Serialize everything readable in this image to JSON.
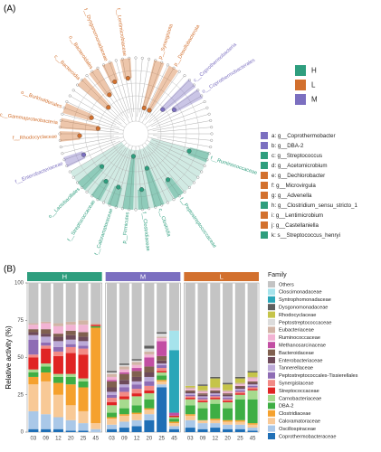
{
  "panel_a": {
    "label": "(A)",
    "groups": [
      {
        "name": "H",
        "color": "#2e9e7e"
      },
      {
        "name": "L",
        "color": "#d2702e"
      },
      {
        "name": "M",
        "color": "#7b6fc0"
      }
    ],
    "taxa": [
      {
        "label": "a: g__Coprothermobacter",
        "group": 2
      },
      {
        "label": "b: g__DBA-2",
        "group": 2
      },
      {
        "label": "c: g__Streptococcus",
        "group": 0
      },
      {
        "label": "d: g__Acetomicrobium",
        "group": 0
      },
      {
        "label": "e: g__Dechlorobacter",
        "group": 1
      },
      {
        "label": "f: g__Microvirgula",
        "group": 1
      },
      {
        "label": "g: g__Advenella",
        "group": 1
      },
      {
        "label": "h: g__Clostridium_sensu_stricto_1",
        "group": 0
      },
      {
        "label": "i: g__Lentimicrobium",
        "group": 1
      },
      {
        "label": "j: g__Castellaniella",
        "group": 1
      },
      {
        "label": "k: s__Streptococcus_henryi",
        "group": 0
      }
    ],
    "clade_labels": [
      {
        "label": "p__Synergistota",
        "group": 1
      },
      {
        "label": "p__Desulfobacterota",
        "group": 1
      },
      {
        "label": "c__Coprothermobacteria",
        "group": 2
      },
      {
        "label": "o__Coprothermobacterales",
        "group": 2
      },
      {
        "label": "f__Lentimicrobiaceae",
        "group": 1
      },
      {
        "label": "f__Dysgonomonadaceae",
        "group": 1
      },
      {
        "label": "o__Bacteroidales",
        "group": 1
      },
      {
        "label": "c__Bacteroidia",
        "group": 1
      },
      {
        "label": "o__Burkholderiales",
        "group": 1
      },
      {
        "label": "c__Gammaproteobacteria",
        "group": 1
      },
      {
        "label": "f__Rhodocyclaceae",
        "group": 1
      },
      {
        "label": "f__Enterobacteriaceae",
        "group": 2
      },
      {
        "label": "f__Ruminococcaceae",
        "group": 0
      },
      {
        "label": "f__Peptostreptococcaceae",
        "group": 0
      },
      {
        "label": "c__Clostridia",
        "group": 0
      },
      {
        "label": "f__Clostridiaceae",
        "group": 0
      },
      {
        "label": "p__Firmicutes",
        "group": 0
      },
      {
        "label": "f__Caloramatoraceae",
        "group": 0
      },
      {
        "label": "f__Streptococcaceae",
        "group": 0
      },
      {
        "label": "o__Lactobacillales",
        "group": 0
      }
    ]
  },
  "chart_data": {
    "type": "stacked_bar",
    "panel_label": "(B)",
    "ylabel": "Relative activity (%)",
    "legend_title": "Family",
    "ylim": [
      0,
      100
    ],
    "yticks": [
      0,
      25,
      50,
      75,
      100
    ],
    "facets": [
      {
        "label": "H",
        "color": "#2e9e7e"
      },
      {
        "label": "M",
        "color": "#7b6fc0"
      },
      {
        "label": "L",
        "color": "#d2702e"
      }
    ],
    "categories": [
      "03",
      "09",
      "12",
      "20",
      "25",
      "45",
      "03",
      "09",
      "12",
      "20",
      "25",
      "45",
      "03",
      "09",
      "12",
      "20",
      "25",
      "45"
    ],
    "series": [
      {
        "name": "Others",
        "color": "#c4c4c4",
        "values": [
          27,
          26,
          27,
          26,
          25,
          27,
          59,
          54,
          51,
          42,
          33,
          32,
          69,
          68,
          63,
          67,
          63,
          59
        ]
      },
      {
        "name": "Closcimonadaceae",
        "color": "#a6e3ec",
        "values": [
          0,
          0,
          0,
          0,
          0,
          0,
          0,
          0,
          0,
          0,
          0,
          13,
          0,
          0,
          0,
          0,
          0,
          0
        ]
      },
      {
        "name": "Syntrophomonadaceae",
        "color": "#2aa6b8",
        "values": [
          0,
          0,
          0,
          0,
          0,
          0,
          0,
          0,
          0,
          0,
          0,
          42,
          0,
          0,
          0,
          0,
          0,
          0
        ]
      },
      {
        "name": "Dysgonomonadaceae",
        "color": "#5e5e5e",
        "values": [
          0,
          0,
          0,
          0,
          0,
          0,
          1,
          1,
          1,
          2,
          1,
          0,
          0,
          1,
          1,
          1,
          1,
          1
        ]
      },
      {
        "name": "Rhodocyclaceae",
        "color": "#c5c44a",
        "values": [
          0,
          0,
          0,
          0,
          0,
          0,
          0,
          0,
          0,
          0,
          0,
          0,
          1,
          3,
          6,
          4,
          3,
          3
        ]
      },
      {
        "name": "Peptostreptococcaceae",
        "color": "#dcdcdc",
        "values": [
          0,
          0,
          0,
          0,
          0,
          0,
          1,
          1,
          1,
          2,
          2,
          0,
          0,
          0,
          0,
          0,
          0,
          0
        ]
      },
      {
        "name": "Eubacteriaceae",
        "color": "#d2b4a6",
        "values": [
          1,
          1,
          2,
          2,
          3,
          1,
          2,
          2,
          2,
          2,
          1,
          0,
          1,
          1,
          1,
          1,
          1,
          1
        ]
      },
      {
        "name": "Ruminococcaceae",
        "color": "#f2b3d4",
        "values": [
          3,
          4,
          5,
          4,
          5,
          0,
          2,
          2,
          2,
          2,
          2,
          0,
          1,
          1,
          1,
          1,
          1,
          2
        ]
      },
      {
        "name": "Methanosarcinaceae",
        "color": "#c24ea3",
        "values": [
          0,
          0,
          0,
          0,
          0,
          0,
          1,
          1,
          2,
          6,
          10,
          2,
          0,
          0,
          0,
          0,
          0,
          0
        ]
      },
      {
        "name": "Bacteroidaceae",
        "color": "#80604f",
        "values": [
          2,
          3,
          2,
          3,
          3,
          0,
          4,
          4,
          4,
          4,
          3,
          0,
          1,
          1,
          1,
          1,
          1,
          1
        ]
      },
      {
        "name": "Enterobacteriaceae",
        "color": "#6e4a5a",
        "values": [
          2,
          2,
          3,
          3,
          3,
          0,
          3,
          3,
          3,
          3,
          2,
          0,
          1,
          1,
          1,
          1,
          1,
          1
        ]
      },
      {
        "name": "Tannerellaceae",
        "color": "#bcaad8",
        "values": [
          3,
          4,
          4,
          3,
          3,
          0,
          2,
          2,
          2,
          3,
          1,
          0,
          1,
          1,
          1,
          1,
          1,
          1
        ]
      },
      {
        "name": "Peptostreptococcales-Tissierellales",
        "color": "#8e6cb4",
        "values": [
          10,
          2,
          3,
          2,
          2,
          0,
          2,
          3,
          3,
          3,
          2,
          0,
          1,
          1,
          1,
          1,
          1,
          1
        ]
      },
      {
        "name": "Synergistaceae",
        "color": "#f28a86",
        "values": [
          2,
          2,
          3,
          4,
          4,
          0,
          3,
          3,
          3,
          3,
          2,
          0,
          1,
          1,
          1,
          1,
          1,
          1
        ]
      },
      {
        "name": "Streptococcaceae",
        "color": "#e02424",
        "values": [
          8,
          10,
          12,
          14,
          16,
          1,
          2,
          2,
          2,
          2,
          1,
          1,
          1,
          1,
          1,
          1,
          1,
          1
        ]
      },
      {
        "name": "Carnobacteriaceae",
        "color": "#a6da8e",
        "values": [
          2,
          2,
          2,
          2,
          2,
          0,
          5,
          6,
          6,
          4,
          2,
          1,
          4,
          4,
          3,
          4,
          3,
          6
        ]
      },
      {
        "name": "DBA-2",
        "color": "#3eae44",
        "values": [
          3,
          4,
          4,
          5,
          4,
          1,
          3,
          4,
          5,
          6,
          3,
          2,
          6,
          8,
          10,
          8,
          14,
          16
        ]
      },
      {
        "name": "Clostridiaceae",
        "color": "#f5a12e",
        "values": [
          5,
          6,
          8,
          14,
          16,
          64,
          1,
          1,
          1,
          1,
          1,
          1,
          1,
          0,
          1,
          1,
          1,
          1
        ]
      },
      {
        "name": "Caloramatoraceae",
        "color": "#f8c996",
        "values": [
          18,
          22,
          15,
          10,
          8,
          4,
          4,
          4,
          4,
          3,
          2,
          2,
          3,
          2,
          2,
          2,
          2,
          2
        ]
      },
      {
        "name": "Oscillospiraceae",
        "color": "#aac8e8",
        "values": [
          12,
          10,
          8,
          7,
          5,
          2,
          3,
          4,
          4,
          4,
          2,
          2,
          5,
          4,
          3,
          3,
          3,
          2
        ]
      },
      {
        "name": "Coprothermobacteraceae",
        "color": "#1f6fb6",
        "values": [
          2,
          2,
          2,
          1,
          1,
          0,
          2,
          3,
          4,
          8,
          30,
          2,
          3,
          2,
          3,
          2,
          2,
          1
        ]
      }
    ]
  }
}
